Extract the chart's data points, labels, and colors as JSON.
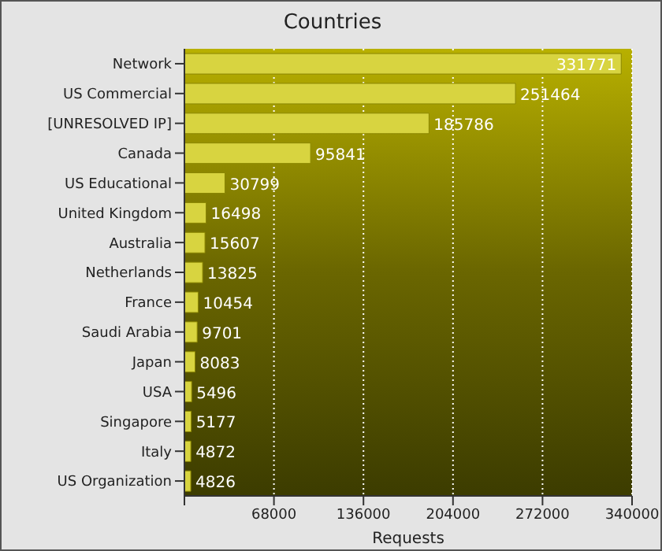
{
  "chart_data": {
    "type": "bar",
    "orientation": "horizontal",
    "title": "Countries",
    "xlabel": "Requests",
    "categories": [
      "Network",
      "US Commercial",
      "[UNRESOLVED IP]",
      "Canada",
      "US Educational",
      "United Kingdom",
      "Australia",
      "Netherlands",
      "France",
      "Saudi Arabia",
      "Japan",
      "USA",
      "Singapore",
      "Italy",
      "US Organization"
    ],
    "values": [
      331771,
      251464,
      185786,
      95841,
      30799,
      16498,
      15607,
      13825,
      10454,
      9701,
      8083,
      5496,
      5177,
      4872,
      4826
    ],
    "color": "#d8d440",
    "xlim": [
      0,
      340000
    ],
    "xticks": [
      {
        "value": 0,
        "label": null
      },
      68000,
      136000,
      204000,
      272000,
      340000
    ],
    "grid": "x",
    "data_labels": true
  }
}
